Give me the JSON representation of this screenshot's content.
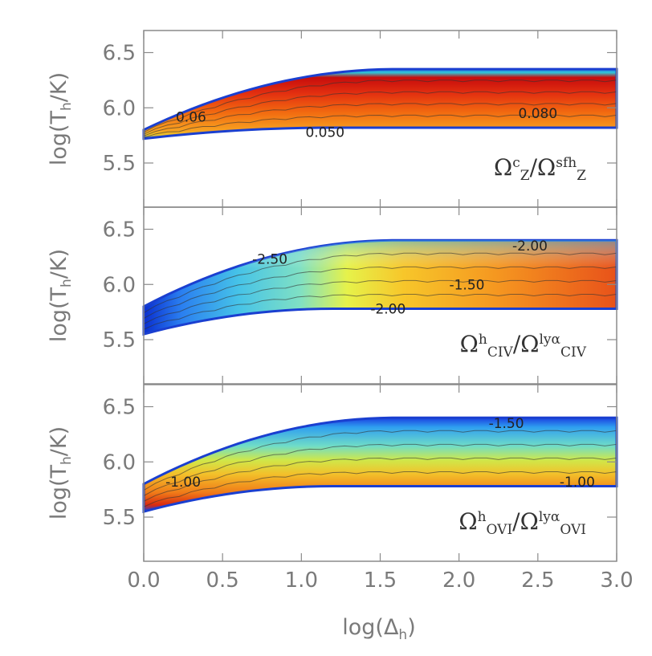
{
  "chart_data": {
    "type": "heatmap",
    "xlabel": "log(Δh)",
    "xlabel_main": "log(Δ",
    "xlabel_sub": "h",
    "xlabel_close": ")",
    "xlim": [
      0.0,
      3.0
    ],
    "x_ticks": [
      "0.0",
      "0.5",
      "1.0",
      "1.5",
      "2.0",
      "2.5",
      "3.0"
    ],
    "x_tick_values": [
      0.0,
      0.5,
      1.0,
      1.5,
      2.0,
      2.5,
      3.0
    ],
    "ylabel": "log(Th/K)",
    "ylabel_main": "log(T",
    "ylabel_sub": "h",
    "ylabel_close": "/K)",
    "ylim": [
      5.1,
      6.7
    ],
    "y_ticks": [
      "5.5",
      "6.0",
      "6.5"
    ],
    "y_tick_values": [
      5.5,
      6.0,
      6.5
    ],
    "panels": [
      {
        "id": "top",
        "label_text": "ΩᶜZ/ΩˢᶠʰZ",
        "label_parts": [
          "Ω",
          "c",
          "Z",
          "/Ω",
          "sfh",
          "Z"
        ],
        "colormap": "warm",
        "region": {
          "x0": 0.0,
          "lower_y0": 5.72,
          "lower_y_plateau": 5.82,
          "upper_y0": 5.8,
          "upper_y_plateau": 6.35
        },
        "contour_labels": [
          {
            "text": "0.06",
            "x": 0.3,
            "y": 5.92
          },
          {
            "text": "0.080",
            "x": 2.5,
            "y": 5.95
          },
          {
            "text": "0.050",
            "x": 1.15,
            "y": 5.78
          }
        ]
      },
      {
        "id": "middle",
        "label_text": "ΩʰCIV/Ωˡʸᵅ CIV",
        "label_parts": [
          "Ω",
          "h",
          "CIV",
          "/Ω",
          "lyα",
          "CIV"
        ],
        "colormap": "blue-to-red",
        "region": {
          "x0": 0.0,
          "lower_y0": 5.55,
          "lower_y_plateau": 5.78,
          "upper_y0": 5.8,
          "upper_y_plateau": 6.4
        },
        "contour_labels": [
          {
            "text": "-2.50",
            "x": 0.8,
            "y": 6.23
          },
          {
            "text": "-2.00",
            "x": 2.45,
            "y": 6.35
          },
          {
            "text": "-1.50",
            "x": 2.05,
            "y": 6.0
          },
          {
            "text": "-2.00",
            "x": 1.55,
            "y": 5.78
          }
        ]
      },
      {
        "id": "bottom",
        "label_text": "ΩʰOVI/Ωˡʸᵅ OVI",
        "label_parts": [
          "Ω",
          "h",
          "OVI",
          "/Ω",
          "lyα",
          "OVI"
        ],
        "colormap": "red-to-blue",
        "region": {
          "x0": 0.0,
          "lower_y0": 5.55,
          "lower_y_plateau": 5.78,
          "upper_y0": 5.8,
          "upper_y_plateau": 6.4
        },
        "contour_labels": [
          {
            "text": "-1.50",
            "x": 2.3,
            "y": 6.35
          },
          {
            "text": "-1.00",
            "x": 0.25,
            "y": 5.82
          },
          {
            "text": "-1.00",
            "x": 2.75,
            "y": 5.82
          }
        ]
      }
    ]
  }
}
